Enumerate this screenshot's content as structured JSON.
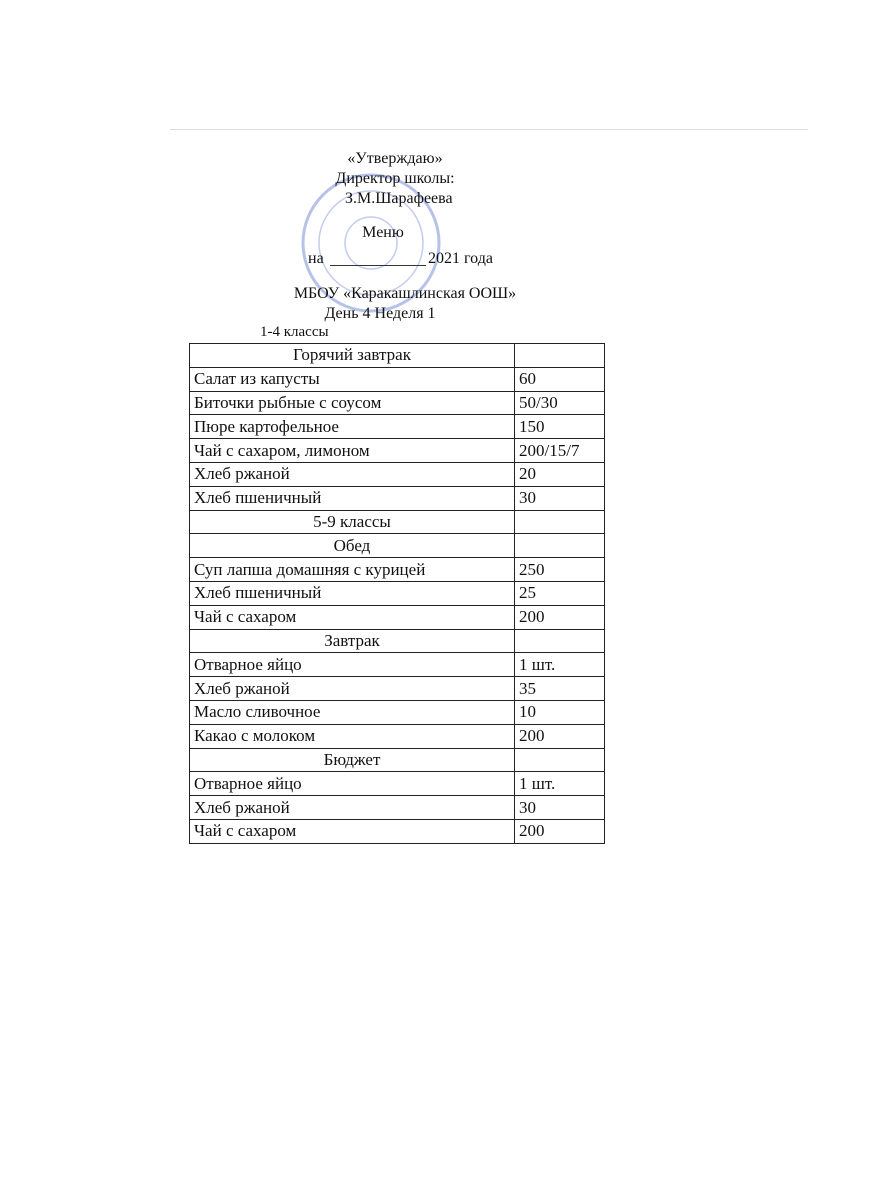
{
  "header": {
    "approve": "«Утверждаю»",
    "position": "Директор школы:",
    "name": "З.М.Шарафеева",
    "title": "Меню",
    "date_prefix": "на",
    "date_suffix": "2021 года",
    "school": "МБОУ «Каракашлинская ООШ»",
    "day": "День 4 Неделя 1",
    "grade": "1-4 классы"
  },
  "table": {
    "rows": [
      {
        "section": "Горячий завтрак"
      },
      {
        "dish": "Салат из капусты",
        "amount": "60"
      },
      {
        "dish": "Биточки рыбные с соусом",
        "amount": "50/30"
      },
      {
        "dish": "Пюре картофельное",
        "amount": "150"
      },
      {
        "dish": "Чай с сахаром, лимоном",
        "amount": "200/15/7"
      },
      {
        "dish": "Хлеб ржаной",
        "amount": "20"
      },
      {
        "dish": "Хлеб пшеничный",
        "amount": "30"
      },
      {
        "section": "5-9 классы"
      },
      {
        "section": "Обед"
      },
      {
        "dish": "Суп лапша домашняя с курицей",
        "amount": "250"
      },
      {
        "dish": "Хлеб пшеничный",
        "amount": "25"
      },
      {
        "dish": "Чай с сахаром",
        "amount": "200"
      },
      {
        "section": "Завтрак"
      },
      {
        "dish": "Отварное яйцо",
        "amount": "1 шт."
      },
      {
        "dish": "Хлеб ржаной",
        "amount": "35"
      },
      {
        "dish": "Масло сливочное",
        "amount": "10"
      },
      {
        "dish": "Какао с молоком",
        "amount": "200"
      },
      {
        "section": "Бюджет"
      },
      {
        "dish": "Отварное яйцо",
        "amount": "1 шт."
      },
      {
        "dish": "Хлеб ржаной",
        "amount": "30"
      },
      {
        "dish": "Чай с сахаром",
        "amount": "200"
      }
    ]
  }
}
